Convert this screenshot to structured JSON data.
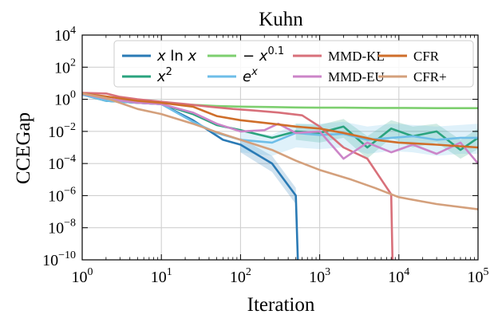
{
  "chart_data": {
    "type": "line",
    "title": "Kuhn",
    "xlabel": "Iteration",
    "ylabel": "CCEGap",
    "xscale": "log",
    "yscale": "log",
    "xlim": [
      1,
      100000
    ],
    "ylim": [
      1e-10,
      10000
    ],
    "grid": true,
    "legend_position": "top",
    "x_ticks": [
      {
        "value": 1,
        "base": "10",
        "exp": "0"
      },
      {
        "value": 10,
        "base": "10",
        "exp": "1"
      },
      {
        "value": 100,
        "base": "10",
        "exp": "2"
      },
      {
        "value": 1000,
        "base": "10",
        "exp": "3"
      },
      {
        "value": 10000,
        "base": "10",
        "exp": "4"
      },
      {
        "value": 100000,
        "base": "10",
        "exp": "5"
      }
    ],
    "y_ticks": [
      {
        "value": 1e-10,
        "base": "10",
        "exp": "−10"
      },
      {
        "value": 1e-08,
        "base": "10",
        "exp": "−8"
      },
      {
        "value": 1e-06,
        "base": "10",
        "exp": "−6"
      },
      {
        "value": 0.0001,
        "base": "10",
        "exp": "−4"
      },
      {
        "value": 0.01,
        "base": "10",
        "exp": "−2"
      },
      {
        "value": 1,
        "base": "10",
        "exp": "0"
      },
      {
        "value": 100,
        "base": "10",
        "exp": "2"
      },
      {
        "value": 10000,
        "base": "10",
        "exp": "4"
      }
    ],
    "series": [
      {
        "name": "x ln x",
        "legend": {
          "parts": [
            {
              "t": "x",
              "i": true
            },
            {
              "t": "ln",
              "i": false
            },
            {
              "t": "x",
              "i": true
            }
          ]
        },
        "color": "#2a7ab5",
        "x": [
          1,
          2,
          5,
          10,
          25,
          60,
          100,
          250,
          500,
          530
        ],
        "y": [
          2,
          0.8,
          0.6,
          0.5,
          0.05,
          0.003,
          0.0015,
          0.0001,
          1e-06,
          1e-10
        ],
        "band": {
          "x": [
            100,
            250,
            500
          ],
          "upper": [
            0.004,
            0.0003,
            3e-06
          ],
          "lower": [
            0.0005,
            3e-05,
            3e-07
          ]
        }
      },
      {
        "name": "x^2",
        "legend": {
          "parts": [
            {
              "t": "x",
              "i": true
            },
            {
              "t": "2",
              "sup": true
            }
          ]
        },
        "color": "#2aa37e",
        "x": [
          1,
          2,
          5,
          10,
          25,
          50,
          100,
          250,
          500,
          1000,
          2000,
          4000,
          8000,
          15000,
          30000,
          60000,
          100000
        ],
        "y": [
          2,
          0.8,
          0.6,
          0.5,
          0.12,
          0.025,
          0.012,
          0.004,
          0.01,
          0.008,
          0.02,
          0.001,
          0.015,
          0.005,
          0.01,
          0.0007,
          0.004
        ],
        "band": {
          "x": [
            500,
            1000,
            2000,
            4000,
            8000,
            15000,
            30000,
            60000,
            100000
          ],
          "upper": [
            0.03,
            0.025,
            0.06,
            0.005,
            0.05,
            0.02,
            0.03,
            0.003,
            0.015
          ],
          "lower": [
            0.003,
            0.002,
            0.004,
            0.0002,
            0.004,
            0.001,
            0.002,
            0.0002,
            0.0008
          ]
        }
      },
      {
        "name": "-x^0.1",
        "legend": {
          "parts": [
            {
              "t": "−",
              "i": false
            },
            {
              "t": "x",
              "i": true
            },
            {
              "t": "0.1",
              "sup": true
            }
          ]
        },
        "color": "#7dcf6f",
        "x": [
          1,
          2,
          5,
          10,
          25,
          50,
          100,
          250,
          500,
          1000,
          2000,
          5000,
          10000,
          30000,
          100000
        ],
        "y": [
          2,
          1,
          0.7,
          0.6,
          0.45,
          0.38,
          0.35,
          0.33,
          0.31,
          0.3,
          0.3,
          0.29,
          0.29,
          0.28,
          0.28
        ]
      },
      {
        "name": "e^x",
        "legend": {
          "parts": [
            {
              "t": "e",
              "i": true
            },
            {
              "t": "x",
              "sup": true,
              "i": true
            }
          ]
        },
        "color": "#6ebee8",
        "x": [
          1,
          2,
          5,
          10,
          25,
          50,
          100,
          250,
          500,
          1000,
          2000,
          4000,
          8000,
          15000,
          30000,
          60000,
          100000
        ],
        "y": [
          2,
          0.8,
          0.6,
          0.5,
          0.04,
          0.008,
          0.003,
          0.002,
          0.008,
          0.006,
          0.007,
          0.003,
          0.004,
          0.005,
          0.003,
          0.004,
          0.004
        ],
        "band": {
          "x": [
            100,
            250,
            500,
            1000,
            2000,
            4000,
            8000,
            15000,
            30000,
            60000,
            100000
          ],
          "upper": [
            0.01,
            0.006,
            0.03,
            0.03,
            0.04,
            0.02,
            0.03,
            0.025,
            0.02,
            0.025,
            0.03
          ],
          "lower": [
            0.0005,
            0.0003,
            0.001,
            0.0008,
            0.001,
            0.0004,
            0.0006,
            0.0005,
            0.0003,
            0.0004,
            0.0004
          ]
        }
      },
      {
        "name": "MMD-KL",
        "legend": {
          "parts": [
            {
              "t": "MMD-KL",
              "serif": true
            }
          ]
        },
        "color": "#d8707a",
        "x": [
          1,
          2,
          3,
          5,
          10,
          20,
          40,
          80,
          150,
          300,
          600,
          1000,
          2000,
          4000,
          6000,
          8000,
          8300
        ],
        "y": [
          2.5,
          2.3,
          1.4,
          1.0,
          0.7,
          0.5,
          0.35,
          0.25,
          0.2,
          0.15,
          0.1,
          0.02,
          0.001,
          0.0002,
          1e-05,
          1.2e-06,
          1e-10
        ]
      },
      {
        "name": "MMD-EU",
        "legend": {
          "parts": [
            {
              "t": "MMD-EU",
              "serif": true
            }
          ]
        },
        "color": "#cc85c8",
        "x": [
          1,
          2,
          5,
          10,
          25,
          50,
          100,
          200,
          300,
          500,
          1000,
          2000,
          4000,
          8000,
          15000,
          30000,
          60000,
          100000
        ],
        "y": [
          2.2,
          1.1,
          0.6,
          0.5,
          0.15,
          0.03,
          0.01,
          0.012,
          0.03,
          0.008,
          0.01,
          0.0002,
          0.002,
          0.0005,
          0.0015,
          0.0004,
          0.002,
          0.0001
        ]
      },
      {
        "name": "CFR",
        "legend": {
          "parts": [
            {
              "t": "CFR",
              "serif": true
            }
          ]
        },
        "color": "#cf6e2a",
        "x": [
          1,
          2,
          5,
          10,
          25,
          50,
          100,
          250,
          500,
          1000,
          2000,
          5000,
          10000,
          30000,
          100000
        ],
        "y": [
          2.3,
          1.5,
          0.8,
          0.6,
          0.35,
          0.09,
          0.05,
          0.03,
          0.02,
          0.015,
          0.008,
          0.003,
          0.002,
          0.0015,
          0.001
        ]
      },
      {
        "name": "CFR+",
        "legend": {
          "parts": [
            {
              "t": "CFR+",
              "serif": true
            }
          ]
        },
        "color": "#d4a07c",
        "x": [
          1,
          2,
          5,
          10,
          25,
          50,
          100,
          250,
          500,
          1000,
          2500,
          5000,
          10000,
          30000,
          100000
        ],
        "y": [
          2.3,
          1.2,
          0.25,
          0.12,
          0.03,
          0.009,
          0.003,
          0.0007,
          0.00015,
          4e-05,
          1e-05,
          3e-06,
          8e-07,
          3e-07,
          1.4e-07
        ]
      }
    ]
  }
}
